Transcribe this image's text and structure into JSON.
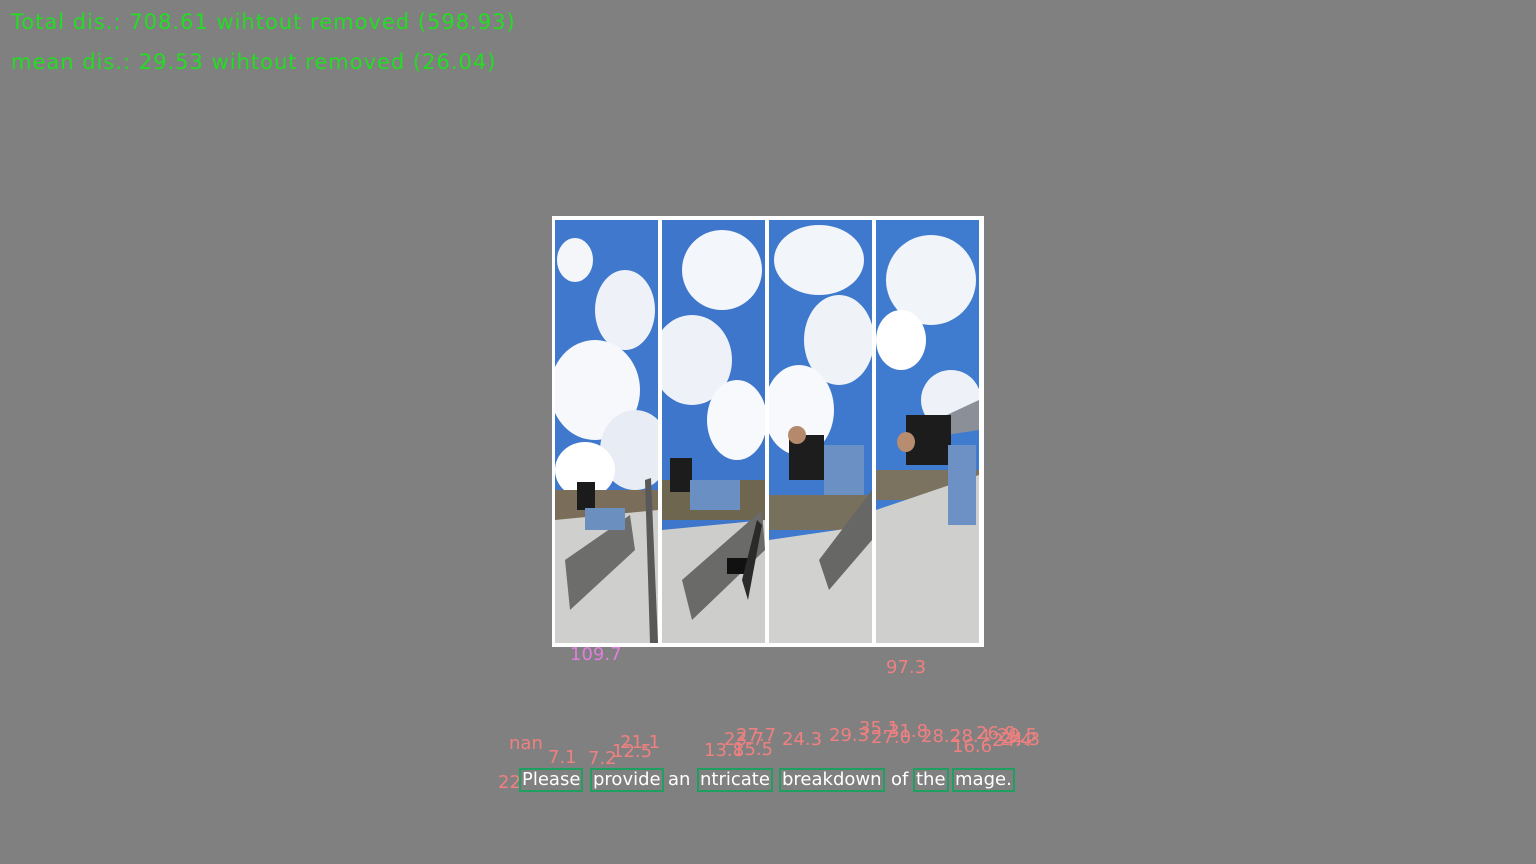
{
  "stats": {
    "total": "Total dis.: 708.61 wihtout removed (598.93)",
    "mean": "mean dis.: 29.53 wihtout removed (26.04)"
  },
  "image_scores": {
    "left": "109.7",
    "right": "97.3"
  },
  "token_scores": [
    "nan",
    "7.1",
    "7.2",
    "12.5",
    "21.1",
    "13.8",
    "27.7",
    "23.7",
    "15.5",
    "24.3",
    "29.3",
    "35.1",
    "31.8",
    "27.0",
    "28.2",
    "28.4",
    "26.9",
    "29.5",
    "24.3",
    "16.6",
    "24.4",
    "22"
  ],
  "words": [
    "Please",
    "provide",
    "an",
    "ntricate",
    "breakdown",
    "of",
    "the",
    "mage."
  ],
  "colors": {
    "background": "#808080",
    "stat_text": "#22dd22",
    "score_text": "#f08080",
    "image_score_text": "#e07ee0",
    "word_border": "#1fa060"
  }
}
